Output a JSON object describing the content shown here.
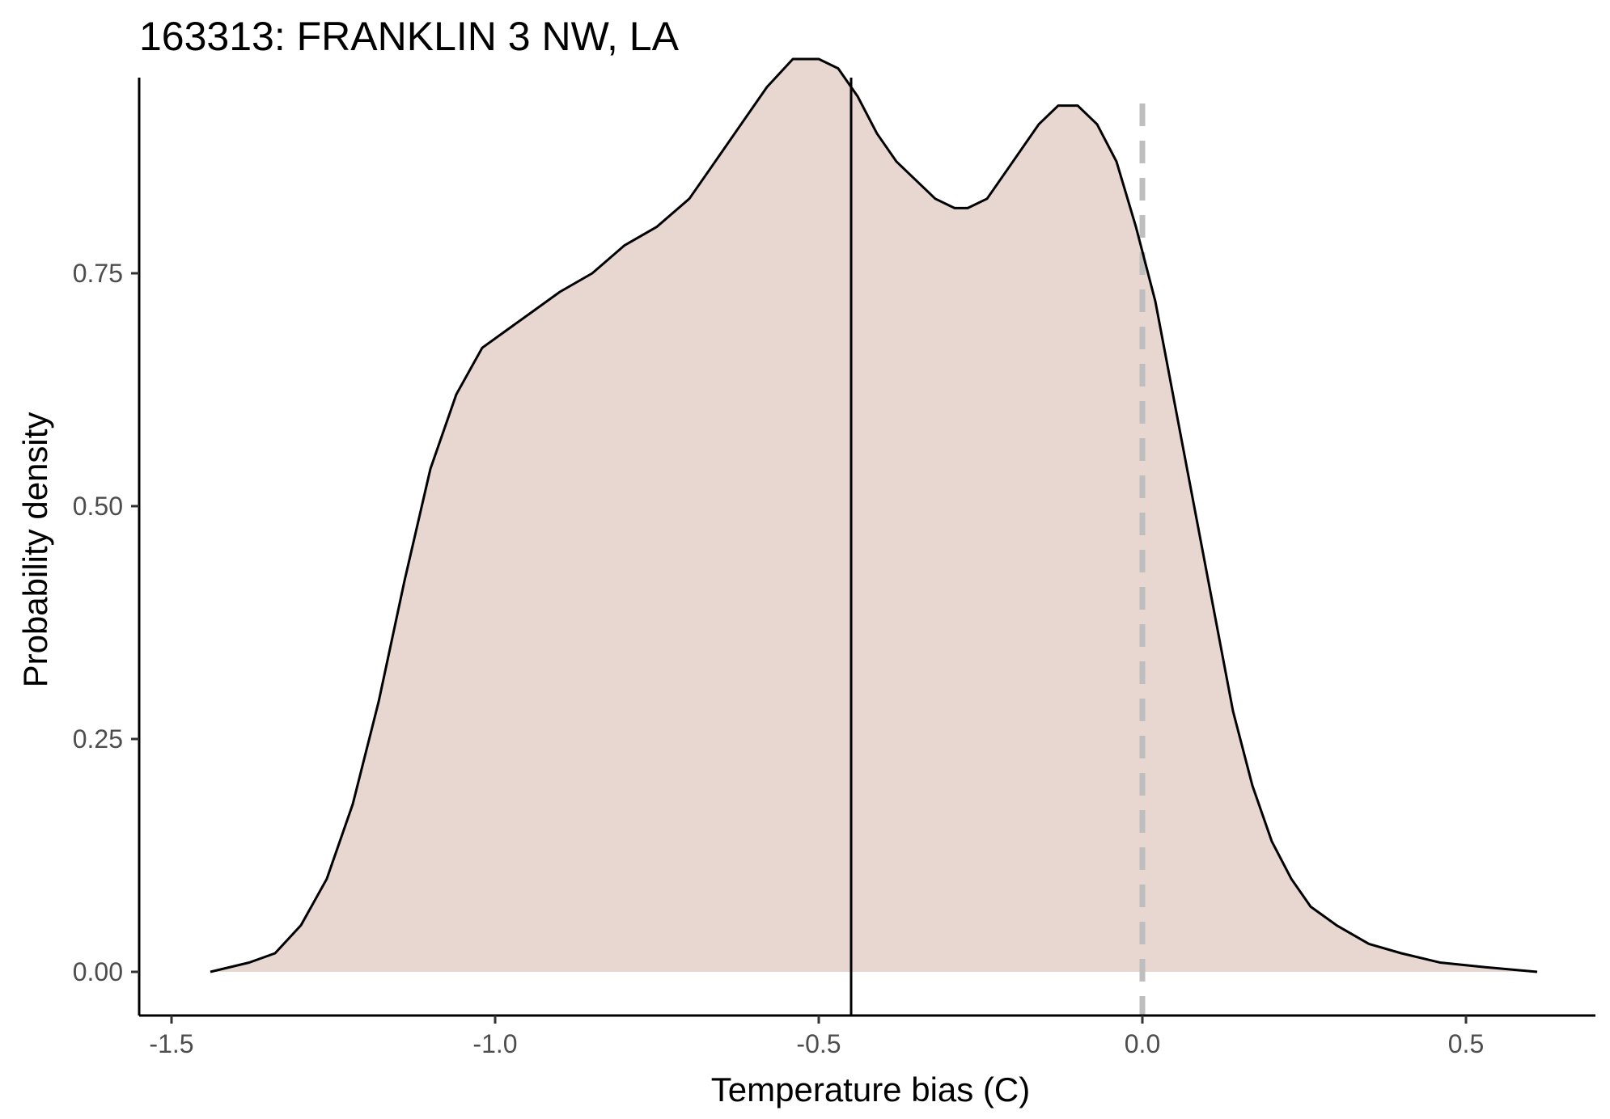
{
  "chart_data": {
    "type": "area",
    "title": "163313: FRANKLIN 3 NW, LA",
    "xlabel": "Temperature bias (C)",
    "ylabel": "Probability density",
    "xlim": [
      -1.55,
      0.7
    ],
    "ylim": [
      -0.14,
      3.0
    ],
    "x_ticks": [
      -1.5,
      -1.0,
      -0.5,
      0.0,
      0.5
    ],
    "x_tick_labels": [
      "-1.5",
      "-1.0",
      "-0.5",
      "0.0",
      "0.5"
    ],
    "y_ticks": [
      0.0,
      0.25,
      0.5,
      0.75
    ],
    "y_tick_labels": [
      "0.00",
      "0.25",
      "0.50",
      "0.75"
    ],
    "grid": false,
    "fill_color": "#e8d6d1",
    "line_color": "#000000",
    "density_curve": {
      "x": [
        -1.44,
        -1.38,
        -1.34,
        -1.3,
        -1.26,
        -1.22,
        -1.18,
        -1.14,
        -1.1,
        -1.06,
        -1.02,
        -0.98,
        -0.94,
        -0.9,
        -0.85,
        -0.8,
        -0.75,
        -0.7,
        -0.66,
        -0.62,
        -0.58,
        -0.54,
        -0.5,
        -0.47,
        -0.44,
        -0.41,
        -0.38,
        -0.35,
        -0.32,
        -0.29,
        -0.27,
        -0.24,
        -0.2,
        -0.16,
        -0.13,
        -0.1,
        -0.07,
        -0.04,
        -0.01,
        0.02,
        0.05,
        0.08,
        0.11,
        0.14,
        0.17,
        0.2,
        0.23,
        0.26,
        0.3,
        0.35,
        0.4,
        0.46,
        0.53,
        0.61
      ],
      "y": [
        0.0,
        0.01,
        0.02,
        0.05,
        0.1,
        0.18,
        0.29,
        0.42,
        0.54,
        0.62,
        0.67,
        0.69,
        0.71,
        0.73,
        0.75,
        0.78,
        0.8,
        0.83,
        0.87,
        0.91,
        0.95,
        0.98,
        0.98,
        0.97,
        0.94,
        0.9,
        0.87,
        0.85,
        0.83,
        0.82,
        0.82,
        0.83,
        0.87,
        0.91,
        0.93,
        0.93,
        0.91,
        0.87,
        0.8,
        0.72,
        0.61,
        0.5,
        0.39,
        0.28,
        0.2,
        0.14,
        0.1,
        0.07,
        0.05,
        0.03,
        0.02,
        0.01,
        0.005,
        0.0
      ]
    },
    "reference_lines": [
      {
        "x": -0.45,
        "style": "solid",
        "color": "#000000"
      },
      {
        "x": 0.0,
        "style": "dashed",
        "color": "#bebebe"
      }
    ]
  }
}
